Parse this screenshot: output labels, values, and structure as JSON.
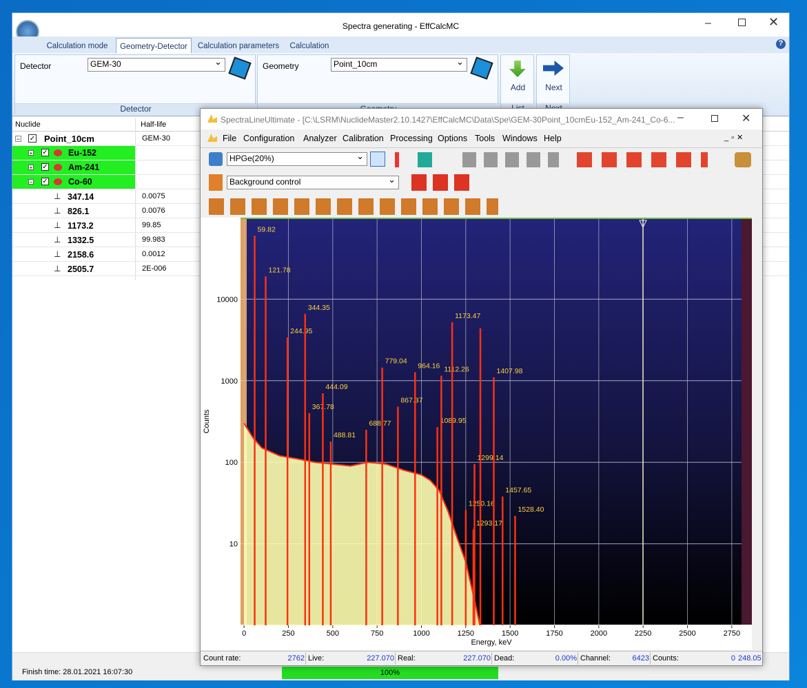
{
  "window": {
    "title": "Spectra generating - EffCalcMC",
    "tabs": [
      "Calculation mode",
      "Geometry-Detector",
      "Calculation parameters",
      "Calculation"
    ]
  },
  "ribbon": {
    "detector": {
      "label": "Detector",
      "value": "GEM-30",
      "caption": "Detector"
    },
    "geometry": {
      "label": "Geometry",
      "value": "Point_10cm",
      "caption": "Geometry"
    },
    "list": {
      "button": "Add",
      "caption": "List"
    },
    "next": {
      "button": "Next",
      "caption": "Next"
    }
  },
  "tree": {
    "columns": [
      "Nuclide",
      "Half-life"
    ],
    "root": [
      "Point_10cm",
      "GEM-30"
    ],
    "nuclides": [
      "Eu-152",
      "Am-241",
      "Co-60"
    ],
    "lines": [
      [
        "347.14",
        "0.0075"
      ],
      [
        "826.1",
        "0.0076"
      ],
      [
        "1173.2",
        "99.85"
      ],
      [
        "1332.5",
        "99.983"
      ],
      [
        "2158.6",
        "0.0012"
      ],
      [
        "2505.7",
        "2E-006"
      ]
    ]
  },
  "status": {
    "finish": "Finish time: 28.01.2021 16:07:30",
    "progress": "100%"
  },
  "inner": {
    "title": "SpectraLineUltimate - [C:\\LSRM\\NuclideMaster2.10.1427\\EffCalcMC\\Data\\Spe\\GEM-30Point_10cmEu-152_Am-241_Co-6...",
    "menu": [
      "File",
      "Configuration",
      "Analyzer",
      "Calibration",
      "Processing",
      "Options",
      "Tools",
      "Windows",
      "Help"
    ],
    "detector_select": "HPGe(20%)",
    "mode_select": "Background control",
    "status": [
      [
        "Count rate:",
        "2762"
      ],
      [
        "Live:",
        "227.070"
      ],
      [
        "Real:",
        "227.070"
      ],
      [
        "Dead:",
        "0.00%"
      ],
      [
        "Channel:",
        "6423"
      ],
      [
        "Counts:",
        "0"
      ]
    ],
    "status_extra": "248.05"
  },
  "chart_data": {
    "type": "area",
    "x_label": "Energy, keV",
    "y_label": "Counts",
    "x": [
      0,
      50,
      100,
      200,
      300,
      400,
      500,
      600,
      700,
      800,
      900,
      1000,
      1050,
      1100,
      1150,
      1200,
      1250,
      1300,
      1330
    ],
    "values": [
      300,
      200,
      150,
      120,
      110,
      100,
      95,
      90,
      100,
      95,
      80,
      70,
      60,
      45,
      25,
      12,
      6,
      2,
      1
    ],
    "color": "#ffffb0",
    "xlim": [
      -20,
      2805
    ],
    "ylim": [
      1,
      100000
    ],
    "log_y": true,
    "xticks": [
      0,
      250,
      500,
      750,
      1000,
      1250,
      1500,
      1750,
      2000,
      2250,
      2500,
      2750
    ],
    "yticks": [
      10,
      100,
      1000,
      10000
    ],
    "grid": true,
    "peaks": {
      "color": "#ff3010",
      "label_color": "#ffd23c",
      "x": [
        59.82,
        121.78,
        244.95,
        344.35,
        367.78,
        444.09,
        488.81,
        688.77,
        779.04,
        867.37,
        964.16,
        1089.95,
        1112.26,
        1173.47,
        1250.16,
        1293.17,
        1299.14,
        1332.5,
        1407.98,
        1457.65,
        1528.4
      ],
      "values": [
        60000,
        19000,
        3400,
        6600,
        400,
        700,
        180,
        250,
        1450,
        480,
        1270,
        270,
        1150,
        5200,
        26,
        15,
        95,
        4400,
        1100,
        38,
        22
      ],
      "labels": [
        "59.82",
        "121.78",
        "244.95",
        "344.35",
        "367.78",
        "444.09",
        "488.81",
        "688.77",
        "779.04",
        "867.37",
        "964.16",
        "1089.95",
        "1112.26",
        "1173.47",
        "1250.16",
        "1293.17",
        "1299.14",
        null,
        "1407.98",
        "1457.65",
        "1528.40"
      ]
    }
  }
}
